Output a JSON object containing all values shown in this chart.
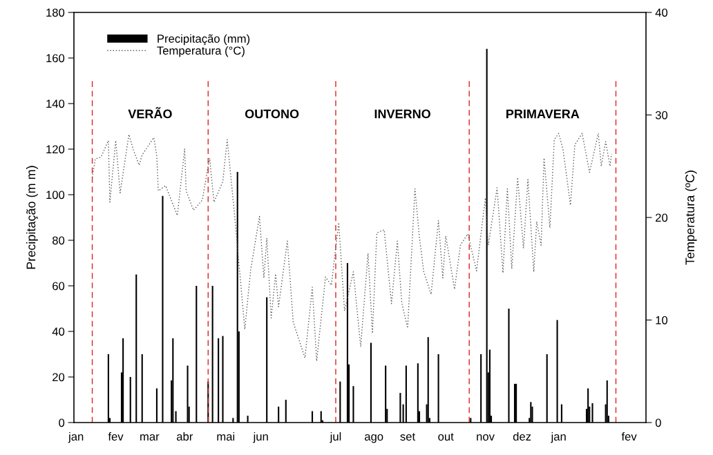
{
  "chart_data": {
    "type": "bar",
    "ylabel": "Precipitação (m m)",
    "y2label": "Temperatura (ºC)",
    "categories": [
      null,
      "jan",
      null,
      null,
      null,
      null,
      null,
      null,
      null,
      null,
      null,
      null,
      null,
      null,
      null,
      null,
      null,
      null,
      null,
      null,
      null,
      null,
      null,
      null,
      null,
      null,
      null,
      null,
      "fev",
      null,
      null,
      null,
      null,
      null,
      null,
      null,
      null,
      null,
      null,
      null,
      null,
      null,
      null,
      null,
      null,
      null,
      null,
      null,
      null,
      null,
      null,
      "mar",
      null,
      null,
      null,
      null,
      null,
      null,
      null,
      null,
      null,
      null,
      null,
      null,
      null,
      null,
      null,
      null,
      null,
      null,
      null,
      null,
      null,
      null,
      null,
      "abr",
      null,
      null,
      null,
      null,
      null,
      null,
      null,
      null,
      null,
      null,
      null,
      null,
      null,
      null,
      null,
      null,
      null,
      null,
      null,
      null,
      null,
      null,
      null,
      null,
      null,
      null,
      null,
      "mai",
      null,
      null,
      null,
      null,
      null,
      null,
      null,
      null,
      null,
      null,
      null,
      null,
      null,
      null,
      null,
      null,
      null,
      null,
      null,
      null,
      null,
      null,
      null,
      "jun",
      null,
      null,
      null,
      null,
      null,
      null,
      null,
      null,
      null,
      null,
      null,
      null,
      null,
      null,
      null,
      null,
      null,
      null,
      null,
      null,
      null,
      null,
      null,
      null,
      null,
      null,
      null,
      null,
      null,
      null,
      null,
      null,
      null,
      null,
      null,
      null,
      null,
      null,
      null,
      null,
      null,
      null,
      null,
      null,
      null,
      null,
      null,
      null,
      null,
      null,
      "jul",
      null,
      null,
      null,
      null,
      null,
      null,
      null,
      null,
      null,
      null,
      null,
      null,
      null,
      null,
      null,
      null,
      null,
      null,
      null,
      null,
      null,
      null,
      null,
      null,
      null,
      "ago",
      null,
      null,
      null,
      null,
      null,
      null,
      null,
      null,
      null,
      null,
      null,
      null,
      null,
      null,
      null,
      null,
      null,
      null,
      null,
      null,
      null,
      null,
      "set",
      null,
      null,
      null,
      null,
      null,
      null,
      null,
      null,
      null,
      null,
      null,
      null,
      null,
      null,
      null,
      null,
      null,
      null,
      null,
      null,
      null,
      null,
      null,
      null,
      null,
      "out",
      null,
      null,
      null,
      null,
      null,
      null,
      null,
      null,
      null,
      null,
      null,
      null,
      null,
      null,
      null,
      null,
      null,
      null,
      null,
      null,
      null,
      null,
      null,
      null,
      null,
      null,
      "nov",
      null,
      null,
      null,
      null,
      null,
      null,
      null,
      null,
      null,
      null,
      null,
      null,
      null,
      null,
      null,
      null,
      null,
      null,
      null,
      null,
      null,
      null,
      null,
      null,
      "dez",
      null,
      null,
      null,
      null,
      null,
      null,
      null,
      null,
      null,
      null,
      null,
      null,
      null,
      null,
      null,
      null,
      null,
      null,
      null,
      null,
      null,
      null,
      null,
      null,
      "jan",
      null,
      null,
      null,
      null,
      null,
      null,
      null,
      null,
      null,
      null,
      null,
      null,
      null,
      null,
      null,
      null,
      null,
      null,
      null,
      null,
      null,
      null,
      null,
      null,
      null,
      null,
      null,
      null,
      null,
      null,
      null,
      null,
      null,
      null,
      null,
      null,
      null,
      null,
      null,
      null,
      null,
      null,
      null,
      null,
      null,
      null,
      null,
      "fev",
      null,
      null,
      null,
      null,
      null,
      null,
      null,
      null,
      null,
      null,
      null
    ],
    "ylim": [
      0,
      180
    ],
    "yticks": [
      0,
      20,
      40,
      60,
      80,
      100,
      120,
      140,
      160,
      180
    ],
    "y2lim": [
      0,
      40
    ],
    "y2ticks": [
      0,
      10,
      20,
      30,
      40
    ],
    "legend": "top left",
    "series": [
      {
        "name": "Precipitação (mm)",
        "color": "#000000",
        "values": [
          null,
          null,
          null,
          null,
          null,
          null,
          null,
          null,
          null,
          null,
          null,
          null,
          null,
          null,
          null,
          null,
          null,
          null,
          null,
          null,
          null,
          null,
          null,
          30,
          2,
          null,
          null,
          null,
          null,
          null,
          null,
          null,
          22,
          37,
          null,
          null,
          null,
          null,
          20,
          null,
          null,
          null,
          65,
          null,
          null,
          null,
          30,
          null,
          null,
          null,
          null,
          null,
          null,
          null,
          null,
          null,
          15,
          null,
          null,
          null,
          99.5,
          null,
          null,
          null,
          null,
          null,
          18.5,
          37,
          null,
          5,
          null,
          null,
          null,
          null,
          null,
          null,
          null,
          25,
          7,
          null,
          null,
          null,
          null,
          60,
          null,
          null,
          null,
          null,
          null,
          null,
          null,
          18,
          null,
          null,
          60,
          null,
          null,
          null,
          37,
          null,
          null,
          38,
          null,
          null,
          null,
          null,
          null,
          null,
          2,
          null,
          null,
          110,
          40,
          null,
          null,
          null,
          null,
          null,
          3,
          null,
          null,
          null,
          null,
          null,
          null,
          null,
          null,
          null,
          null,
          null,
          null,
          55,
          null,
          null,
          null,
          null,
          null,
          null,
          null,
          7,
          null,
          null,
          null,
          null,
          10,
          null,
          null,
          null,
          null,
          null,
          null,
          null,
          null,
          null,
          null,
          null,
          null,
          null,
          null,
          null,
          null,
          null,
          5,
          null,
          null,
          null,
          null,
          null,
          5,
          1,
          null,
          null,
          null,
          null,
          null,
          null,
          null,
          null,
          null,
          null,
          null,
          18,
          null,
          null,
          null,
          null,
          70,
          25.5,
          null,
          null,
          16,
          null,
          null,
          null,
          null,
          null,
          null,
          null,
          null,
          null,
          null,
          null,
          35,
          null,
          null,
          null,
          null,
          null,
          null,
          null,
          null,
          null,
          25,
          6,
          null,
          null,
          null,
          null,
          null,
          null,
          null,
          null,
          13,
          null,
          8,
          null,
          25,
          null,
          null,
          null,
          null,
          null,
          null,
          null,
          26,
          5,
          null,
          null,
          null,
          null,
          8,
          37.5,
          2,
          null,
          null,
          null,
          null,
          null,
          30,
          null,
          null,
          null,
          null,
          null,
          null,
          null,
          null,
          null,
          null,
          null,
          null,
          null,
          null,
          null,
          null,
          null,
          null,
          null,
          null,
          null,
          2,
          null,
          null,
          null,
          null,
          null,
          null,
          30,
          null,
          null,
          null,
          164,
          22,
          32,
          3,
          null,
          null,
          null,
          null,
          null,
          null,
          null,
          null,
          null,
          null,
          null,
          50,
          null,
          null,
          null,
          17,
          17,
          null,
          null,
          null,
          null,
          null,
          null,
          null,
          null,
          2,
          9,
          7,
          null,
          null,
          null,
          null,
          null,
          null,
          null,
          null,
          null,
          30,
          null,
          null,
          null,
          null,
          null,
          null,
          45,
          null,
          null,
          8,
          null,
          null,
          null,
          null,
          null,
          null,
          null,
          null,
          null,
          null,
          null,
          null,
          null,
          null,
          null,
          null,
          6,
          15,
          7,
          null,
          8.5,
          null,
          null,
          null,
          null,
          null,
          null,
          null,
          null,
          8,
          18.5,
          3,
          null,
          null,
          null,
          null,
          null,
          null,
          null,
          null,
          null,
          null,
          null,
          null,
          null,
          null,
          null,
          null,
          null,
          null,
          null,
          null,
          null,
          null,
          null,
          null,
          null
        ]
      },
      {
        "name": "Temperatura (°C)",
        "type": "line",
        "axis": "y2",
        "color": "#555555",
        "line_style": "dotted",
        "values": [
          null,
          null,
          null,
          null,
          null,
          null,
          null,
          null,
          null,
          null,
          null,
          null,
          23.9,
          null,
          25.7,
          null,
          null,
          null,
          25.9,
          null,
          null,
          null,
          null,
          27.5,
          21.5,
          null,
          null,
          null,
          27.5,
          null,
          null,
          22.4,
          null,
          null,
          null,
          null,
          null,
          28.1,
          null,
          null,
          26.6,
          null,
          null,
          null,
          25.1,
          null,
          26.1,
          null,
          null,
          null,
          null,
          null,
          null,
          null,
          27.8,
          null,
          26,
          22.6,
          null,
          null,
          null,
          null,
          23.1,
          null,
          null,
          null,
          null,
          null,
          null,
          null,
          20.2,
          null,
          null,
          null,
          null,
          26.7,
          22.6,
          null,
          null,
          null,
          null,
          20.7,
          null,
          null,
          null,
          null,
          null,
          21.7,
          null,
          null,
          null,
          null,
          25.8,
          null,
          null,
          21.5,
          null,
          null,
          null,
          null,
          null,
          23.5,
          null,
          null,
          27.6,
          null,
          null,
          null,
          null,
          20.3,
          null,
          null,
          null,
          null,
          null,
          null,
          9.1,
          null,
          null,
          null,
          14.9,
          null,
          null,
          null,
          null,
          null,
          20.1,
          null,
          null,
          14.1,
          null,
          18,
          null,
          null,
          10.2,
          null,
          null,
          14.5,
          null,
          11.3,
          null,
          null,
          null,
          null,
          null,
          17.7,
          null,
          null,
          null,
          9.8,
          null,
          null,
          null,
          null,
          null,
          null,
          null,
          6.3,
          null,
          null,
          null,
          null,
          13.2,
          null,
          null,
          6,
          null,
          null,
          null,
          null,
          null,
          14.2,
          null,
          null,
          null,
          13.4,
          null,
          null,
          null,
          null,
          19.5,
          null,
          null,
          null,
          10.9,
          null,
          null,
          null,
          null,
          null,
          14.7,
          null,
          null,
          null,
          null,
          7.4,
          null,
          null,
          null,
          null,
          16.5,
          null,
          null,
          8.7,
          null,
          null,
          18.5,
          null,
          null,
          null,
          null,
          18.8,
          null,
          null,
          null,
          null,
          11.6,
          null,
          null,
          null,
          17.7,
          null,
          null,
          11.7,
          null,
          null,
          null,
          9.2,
          null,
          null,
          null,
          null,
          22.8,
          null,
          null,
          18.1,
          null,
          null,
          14.7,
          null,
          null,
          null,
          null,
          12.5,
          null,
          null,
          null,
          null,
          19.7,
          null,
          null,
          14.1,
          null,
          18.2,
          null,
          null,
          null,
          null,
          null,
          13,
          null,
          null,
          null,
          17.3,
          null,
          null,
          null,
          null,
          18.4,
          null,
          null,
          null,
          null,
          null,
          14.8,
          null,
          null,
          null,
          null,
          null,
          21.9,
          null,
          17.3,
          null,
          null,
          null,
          null,
          null,
          22.9,
          null,
          null,
          null,
          14.6,
          null,
          null,
          22.8,
          null,
          null,
          15,
          null,
          null,
          null,
          23.9,
          null,
          null,
          null,
          17,
          null,
          null,
          23.7,
          null,
          null,
          null,
          14.7,
          null,
          19.6,
          null,
          null,
          17.3,
          null,
          25.8,
          null,
          null,
          null,
          19,
          null,
          null,
          27.6,
          null,
          null,
          28.2,
          null,
          null,
          26.6,
          null,
          null,
          null,
          null,
          21.2,
          null,
          null,
          27.1,
          null,
          null,
          null,
          null,
          28.2,
          null,
          null,
          null,
          null,
          24.4,
          null,
          null,
          null,
          null,
          null,
          28.2,
          null,
          25,
          null,
          null,
          27.4,
          null,
          null,
          25,
          26.2,
          null,
          null,
          null,
          null,
          null,
          null,
          null,
          null,
          null,
          null,
          null,
          null,
          null,
          null,
          null,
          null,
          null,
          null,
          null,
          null,
          null,
          null,
          null
        ]
      }
    ],
    "annotations": [
      "VERÃO",
      "OUTONO",
      "INVERNO",
      "PRIMAVERA"
    ]
  }
}
